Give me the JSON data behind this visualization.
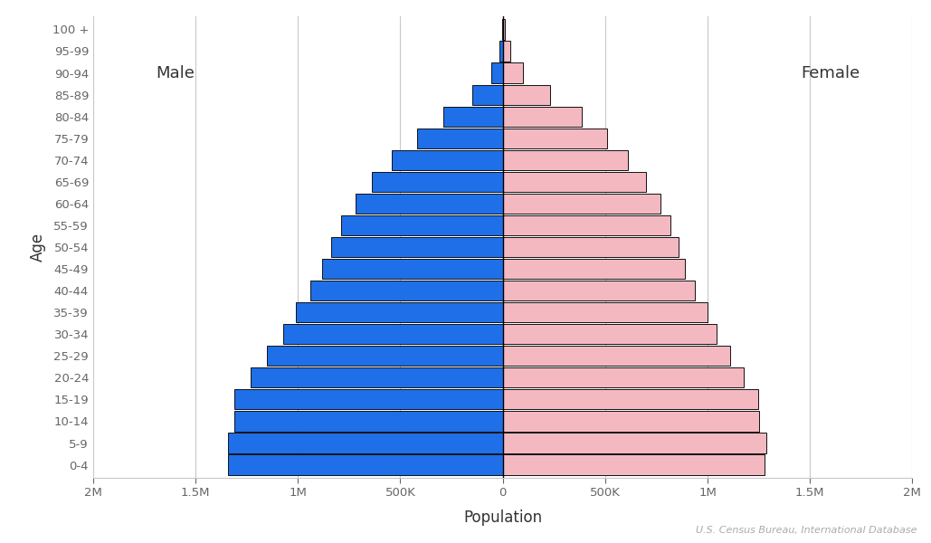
{
  "xlabel": "Population",
  "ylabel": "Age",
  "age_groups": [
    "0-4",
    "5-9",
    "10-14",
    "15-19",
    "20-24",
    "25-29",
    "30-34",
    "35-39",
    "40-44",
    "45-49",
    "50-54",
    "55-59",
    "60-64",
    "65-69",
    "70-74",
    "75-79",
    "80-84",
    "85-89",
    "90-94",
    "95-99",
    "100 +"
  ],
  "male": [
    1340000,
    1340000,
    1310000,
    1310000,
    1230000,
    1150000,
    1070000,
    1010000,
    940000,
    880000,
    840000,
    790000,
    720000,
    640000,
    540000,
    420000,
    290000,
    150000,
    55000,
    15000,
    3000
  ],
  "female": [
    1280000,
    1285000,
    1250000,
    1245000,
    1175000,
    1110000,
    1045000,
    1000000,
    940000,
    890000,
    860000,
    820000,
    770000,
    700000,
    610000,
    510000,
    385000,
    230000,
    100000,
    35000,
    10000
  ],
  "male_color": "#1f6fe8",
  "female_color": "#f4b8c1",
  "bar_edgecolor": "#111111",
  "bar_linewidth": 0.7,
  "background_color": "#ffffff",
  "grid_color": "#c8c8c8",
  "tick_color": "#888888",
  "label_color": "#666666",
  "male_label": "Male",
  "female_label": "Female",
  "source_text": "U.S. Census Bureau, International Database",
  "xlim": 2000000,
  "xticks": [
    -2000000,
    -1500000,
    -1000000,
    -500000,
    0,
    500000,
    1000000,
    1500000,
    2000000
  ],
  "xtick_labels": [
    "2M",
    "1.5M",
    "1M",
    "500K",
    "0",
    "500K",
    "1M",
    "1.5M",
    "2M"
  ]
}
